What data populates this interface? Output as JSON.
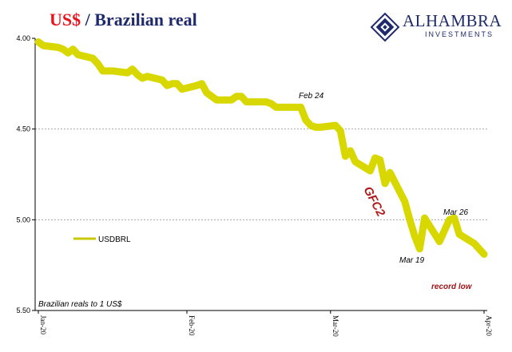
{
  "header": {
    "title_part1": "US$",
    "title_sep": " / ",
    "title_part2": "Brazilian real",
    "logo_word": "ALHAMBRA",
    "logo_sub": "INVESTMENTS",
    "logo_color": "#1f2a6b"
  },
  "chart_data": {
    "type": "line",
    "title": "US$ / Brazilian real",
    "ylabel": "Brazilian reals to 1 US$",
    "y_inverted": true,
    "ylim": [
      4.0,
      5.5
    ],
    "yticks": [
      "4.00",
      "4.50",
      "5.00",
      "5.50"
    ],
    "xticks": [
      "Jan-20",
      "Feb-20",
      "Mar-20",
      "Apr-20"
    ],
    "grid": "horizontal dashed",
    "legend_position": "left-middle",
    "series": [
      {
        "name": "USDBRL",
        "color": "#d8d800",
        "x": [
          "2020-01-02",
          "2020-01-03",
          "2020-01-06",
          "2020-01-07",
          "2020-01-08",
          "2020-01-09",
          "2020-01-10",
          "2020-01-13",
          "2020-01-14",
          "2020-01-15",
          "2020-01-16",
          "2020-01-17",
          "2020-01-20",
          "2020-01-21",
          "2020-01-22",
          "2020-01-23",
          "2020-01-24",
          "2020-01-27",
          "2020-01-28",
          "2020-01-29",
          "2020-01-30",
          "2020-01-31",
          "2020-02-03",
          "2020-02-04",
          "2020-02-05",
          "2020-02-06",
          "2020-02-07",
          "2020-02-10",
          "2020-02-11",
          "2020-02-12",
          "2020-02-13",
          "2020-02-14",
          "2020-02-17",
          "2020-02-18",
          "2020-02-19",
          "2020-02-20",
          "2020-02-21",
          "2020-02-24",
          "2020-02-25",
          "2020-02-26",
          "2020-02-27",
          "2020-02-28",
          "2020-03-02",
          "2020-03-03",
          "2020-03-04",
          "2020-03-05",
          "2020-03-06",
          "2020-03-09",
          "2020-03-10",
          "2020-03-11",
          "2020-03-12",
          "2020-03-13",
          "2020-03-16",
          "2020-03-17",
          "2020-03-18",
          "2020-03-19",
          "2020-03-20",
          "2020-03-23",
          "2020-03-24",
          "2020-03-25",
          "2020-03-26",
          "2020-03-27",
          "2020-03-30",
          "2020-03-31",
          "2020-04-01"
        ],
        "values": [
          4.02,
          4.04,
          4.05,
          4.06,
          4.08,
          4.06,
          4.09,
          4.11,
          4.14,
          4.18,
          4.18,
          4.18,
          4.19,
          4.17,
          4.2,
          4.22,
          4.21,
          4.23,
          4.26,
          4.25,
          4.25,
          4.28,
          4.26,
          4.25,
          4.3,
          4.32,
          4.34,
          4.34,
          4.32,
          4.32,
          4.35,
          4.35,
          4.35,
          4.36,
          4.38,
          4.38,
          4.38,
          4.38,
          4.45,
          4.48,
          4.49,
          4.49,
          4.48,
          4.51,
          4.65,
          4.62,
          4.68,
          4.73,
          4.66,
          4.67,
          4.8,
          4.74,
          4.9,
          5.0,
          5.09,
          5.16,
          4.99,
          5.12,
          5.06,
          5.0,
          4.99,
          5.08,
          5.13,
          5.16,
          5.19
        ]
      }
    ],
    "annotations": [
      {
        "text": "Feb 24",
        "x": "2020-02-24",
        "y": 4.38
      },
      {
        "text": "GFC2",
        "x": "2020-03-13",
        "y": 4.9
      },
      {
        "text": "Mar 26",
        "x": "2020-03-26",
        "y": 4.99
      },
      {
        "text": "Mar 19",
        "x": "2020-03-19",
        "y": 5.16
      },
      {
        "text": "record low",
        "x": "2020-04-01",
        "y": 5.19
      }
    ]
  }
}
